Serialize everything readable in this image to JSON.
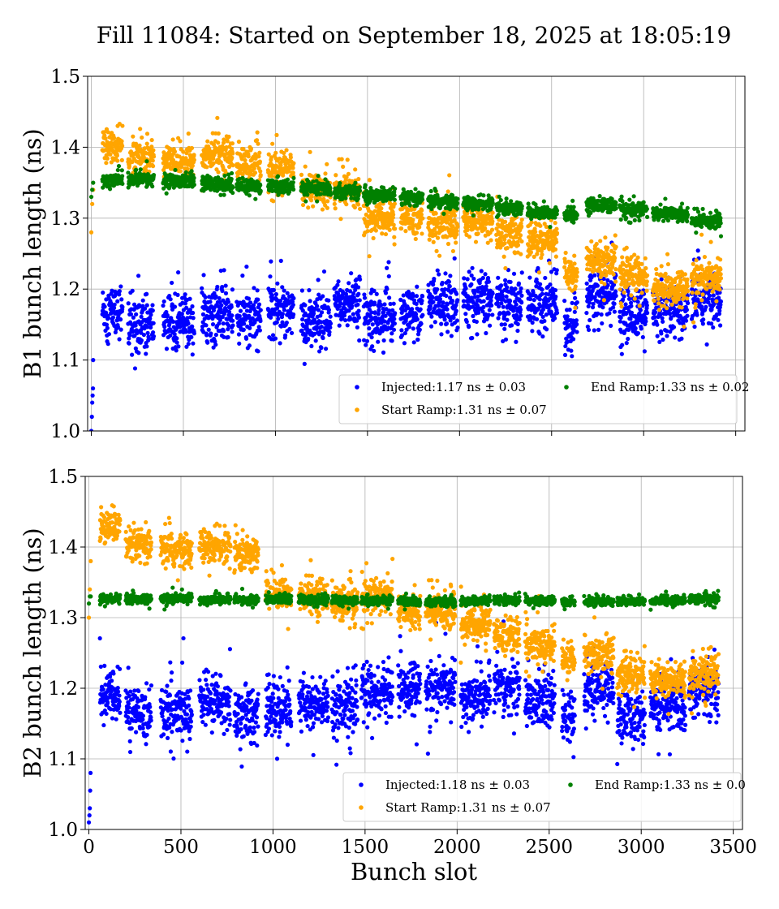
{
  "chart_data": [
    {
      "type": "scatter",
      "title": "Fill 11084: Started on September 18, 2025 at 18:05:19",
      "xlabel": "",
      "ylabel": "B1 bunch length (ns)",
      "xlim": [
        -20,
        3550
      ],
      "ylim": [
        1.0,
        1.5
      ],
      "xticks": [
        0,
        500,
        1000,
        1500,
        2000,
        2500,
        3000,
        3500
      ],
      "yticks": [
        1.0,
        1.1,
        1.2,
        1.3,
        1.4,
        1.5
      ],
      "grid": true,
      "legend_placement": "lower-right",
      "series": [
        {
          "name": "Injected:1.17 ns ± 0.03",
          "color": "#0000ff",
          "spread": 0.03,
          "trains": [
            [
              60,
              170,
              1.17
            ],
            [
              200,
              340,
              1.15
            ],
            [
              390,
              560,
              1.155
            ],
            [
              600,
              770,
              1.165
            ],
            [
              790,
              920,
              1.16
            ],
            [
              960,
              1100,
              1.175
            ],
            [
              1140,
              1300,
              1.15
            ],
            [
              1320,
              1460,
              1.18
            ],
            [
              1480,
              1650,
              1.16
            ],
            [
              1680,
              1800,
              1.165
            ],
            [
              1830,
              1990,
              1.18
            ],
            [
              2020,
              2180,
              1.185
            ],
            [
              2200,
              2340,
              1.18
            ],
            [
              2370,
              2530,
              1.18
            ],
            [
              2570,
              2640,
              1.15
            ],
            [
              2690,
              2850,
              1.19
            ],
            [
              2870,
              3020,
              1.165
            ],
            [
              3050,
              3240,
              1.165
            ],
            [
              3260,
              3420,
              1.185
            ]
          ],
          "extra": [
            [
              0,
              1.0
            ],
            [
              3,
              1.02
            ],
            [
              5,
              1.04
            ],
            [
              7,
              1.05
            ],
            [
              9,
              1.06
            ],
            [
              10,
              1.1
            ]
          ]
        },
        {
          "name": "Start Ramp:1.31 ns ± 0.07",
          "color": "#ffa500",
          "spread": 0.02,
          "trains": [
            [
              60,
              170,
              1.4
            ],
            [
              200,
              340,
              1.385
            ],
            [
              390,
              560,
              1.38
            ],
            [
              600,
              770,
              1.39
            ],
            [
              790,
              920,
              1.375
            ],
            [
              960,
              1100,
              1.37
            ],
            [
              1140,
              1300,
              1.34
            ],
            [
              1320,
              1460,
              1.34
            ],
            [
              1480,
              1650,
              1.3
            ],
            [
              1680,
              1800,
              1.3
            ],
            [
              1830,
              1990,
              1.29
            ],
            [
              2020,
              2180,
              1.295
            ],
            [
              2200,
              2340,
              1.28
            ],
            [
              2370,
              2530,
              1.27
            ],
            [
              2570,
              2640,
              1.22
            ],
            [
              2690,
              2850,
              1.24
            ],
            [
              2870,
              3020,
              1.22
            ],
            [
              3050,
              3240,
              1.2
            ],
            [
              3260,
              3420,
              1.215
            ]
          ],
          "extra": [
            [
              0,
              1.28
            ],
            [
              5,
              1.32
            ],
            [
              10,
              1.34
            ]
          ]
        },
        {
          "name": "End Ramp:1.33 ns ± 0.02",
          "color": "#008000",
          "spread": 0.008,
          "trains": [
            [
              60,
              170,
              1.355
            ],
            [
              200,
              340,
              1.355
            ],
            [
              390,
              560,
              1.352
            ],
            [
              600,
              770,
              1.348
            ],
            [
              790,
              920,
              1.345
            ],
            [
              960,
              1100,
              1.345
            ],
            [
              1140,
              1300,
              1.342
            ],
            [
              1320,
              1460,
              1.338
            ],
            [
              1480,
              1650,
              1.332
            ],
            [
              1680,
              1800,
              1.327
            ],
            [
              1830,
              1990,
              1.323
            ],
            [
              2020,
              2180,
              1.32
            ],
            [
              2200,
              2340,
              1.314
            ],
            [
              2370,
              2530,
              1.308
            ],
            [
              2570,
              2640,
              1.304
            ],
            [
              2690,
              2850,
              1.318
            ],
            [
              2870,
              3020,
              1.312
            ],
            [
              3050,
              3240,
              1.306
            ],
            [
              3260,
              3420,
              1.296
            ]
          ],
          "extra": [
            [
              0,
              1.33
            ],
            [
              5,
              1.34
            ],
            [
              10,
              1.35
            ]
          ]
        }
      ]
    },
    {
      "type": "scatter",
      "xlabel": "Bunch slot",
      "ylabel": "B2 bunch length (ns)",
      "xlim": [
        -20,
        3550
      ],
      "ylim": [
        1.0,
        1.5
      ],
      "xticks": [
        0,
        500,
        1000,
        1500,
        2000,
        2500,
        3000,
        3500
      ],
      "yticks": [
        1.0,
        1.1,
        1.2,
        1.3,
        1.4,
        1.5
      ],
      "grid": true,
      "legend_placement": "lower-right",
      "series": [
        {
          "name": "Injected:1.18 ns ± 0.03",
          "color": "#0000ff",
          "spread": 0.03,
          "trains": [
            [
              60,
              170,
              1.19
            ],
            [
              200,
              340,
              1.165
            ],
            [
              390,
              560,
              1.165
            ],
            [
              600,
              770,
              1.18
            ],
            [
              790,
              920,
              1.165
            ],
            [
              960,
              1100,
              1.17
            ],
            [
              1140,
              1300,
              1.175
            ],
            [
              1320,
              1460,
              1.175
            ],
            [
              1480,
              1650,
              1.195
            ],
            [
              1680,
              1800,
              1.2
            ],
            [
              1830,
              1990,
              1.2
            ],
            [
              2020,
              2180,
              1.19
            ],
            [
              2200,
              2340,
              1.2
            ],
            [
              2370,
              2530,
              1.18
            ],
            [
              2570,
              2640,
              1.16
            ],
            [
              2690,
              2850,
              1.2
            ],
            [
              2870,
              3020,
              1.16
            ],
            [
              3050,
              3240,
              1.175
            ],
            [
              3260,
              3420,
              1.2
            ]
          ],
          "extra": [
            [
              0,
              1.01
            ],
            [
              3,
              1.02
            ],
            [
              5,
              1.03
            ],
            [
              7,
              1.055
            ],
            [
              9,
              1.08
            ]
          ]
        },
        {
          "name": "Start Ramp:1.31 ns ± 0.07",
          "color": "#ffa500",
          "spread": 0.02,
          "trains": [
            [
              60,
              170,
              1.43
            ],
            [
              200,
              340,
              1.4
            ],
            [
              390,
              560,
              1.395
            ],
            [
              600,
              770,
              1.4
            ],
            [
              790,
              920,
              1.39
            ],
            [
              960,
              1100,
              1.335
            ],
            [
              1140,
              1300,
              1.33
            ],
            [
              1320,
              1460,
              1.32
            ],
            [
              1480,
              1650,
              1.33
            ],
            [
              1680,
              1800,
              1.31
            ],
            [
              1830,
              1990,
              1.31
            ],
            [
              2020,
              2180,
              1.29
            ],
            [
              2200,
              2340,
              1.275
            ],
            [
              2370,
              2530,
              1.26
            ],
            [
              2570,
              2640,
              1.24
            ],
            [
              2690,
              2850,
              1.25
            ],
            [
              2870,
              3020,
              1.22
            ],
            [
              3050,
              3240,
              1.21
            ],
            [
              3260,
              3420,
              1.22
            ]
          ],
          "extra": [
            [
              0,
              1.3
            ],
            [
              5,
              1.34
            ],
            [
              10,
              1.38
            ]
          ]
        },
        {
          "name": "End Ramp:1.33 ns ± 0.0",
          "color": "#008000",
          "spread": 0.005,
          "trains": [
            [
              60,
              170,
              1.327
            ],
            [
              200,
              340,
              1.326
            ],
            [
              390,
              560,
              1.327
            ],
            [
              600,
              770,
              1.326
            ],
            [
              790,
              920,
              1.325
            ],
            [
              960,
              1100,
              1.326
            ],
            [
              1140,
              1300,
              1.325
            ],
            [
              1320,
              1460,
              1.324
            ],
            [
              1480,
              1650,
              1.324
            ],
            [
              1680,
              1800,
              1.323
            ],
            [
              1830,
              1990,
              1.323
            ],
            [
              2020,
              2180,
              1.323
            ],
            [
              2200,
              2340,
              1.324
            ],
            [
              2370,
              2530,
              1.324
            ],
            [
              2570,
              2640,
              1.322
            ],
            [
              2690,
              2850,
              1.323
            ],
            [
              2870,
              3020,
              1.323
            ],
            [
              3050,
              3240,
              1.324
            ],
            [
              3260,
              3420,
              1.326
            ]
          ],
          "extra": [
            [
              0,
              1.32
            ],
            [
              5,
              1.33
            ],
            [
              10,
              1.33
            ]
          ]
        }
      ]
    }
  ]
}
